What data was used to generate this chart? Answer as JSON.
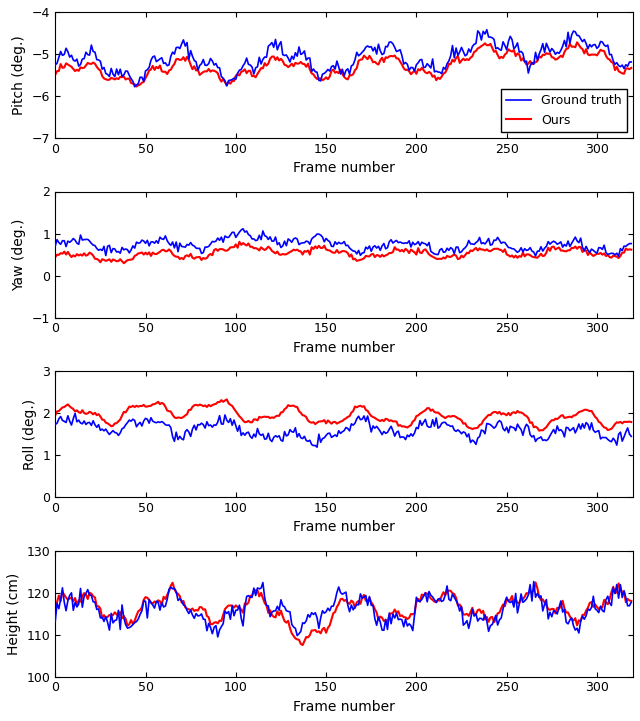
{
  "n_frames": 320,
  "pitch": {
    "gt_base": -5.3,
    "gt_amplitude": 0.3,
    "ours_base": -5.5,
    "ours_amplitude": 0.22,
    "ylim": [
      -7,
      -4
    ],
    "yticks": [
      -7,
      -6,
      -5,
      -4
    ],
    "ylabel": "Pitch (deg.)"
  },
  "yaw": {
    "gt_base": 0.72,
    "gt_amplitude": 0.12,
    "ours_base": 0.42,
    "ours_amplitude": 0.1,
    "ylim": [
      -1,
      2
    ],
    "yticks": [
      -1,
      0,
      1,
      2
    ],
    "ylabel": "Yaw (deg.)"
  },
  "roll": {
    "gt_base": 1.72,
    "gt_amplitude": 0.15,
    "ours_base": 1.95,
    "ours_amplitude": 0.18,
    "ylim": [
      0,
      3
    ],
    "yticks": [
      0,
      1,
      2,
      3
    ],
    "ylabel": "Roll (deg.)"
  },
  "height": {
    "gt_base": 115.5,
    "gt_amplitude": 3.2,
    "ours_base": 116.5,
    "ours_amplitude": 2.8,
    "ylim": [
      100,
      130
    ],
    "yticks": [
      100,
      110,
      120,
      130
    ],
    "ylabel": "Height (cm)"
  },
  "gt_color": "#0000FF",
  "ours_color": "#FF0000",
  "gt_linewidth": 1.2,
  "ours_linewidth": 1.5,
  "xlabel": "Frame number",
  "xticks": [
    0,
    50,
    100,
    150,
    200,
    250,
    300
  ],
  "xlim": [
    0,
    320
  ],
  "legend_labels": [
    "Ground truth",
    "Ours"
  ],
  "fig_bgcolor": "#FFFFFF",
  "axes_bgcolor": "#FFFFFF"
}
